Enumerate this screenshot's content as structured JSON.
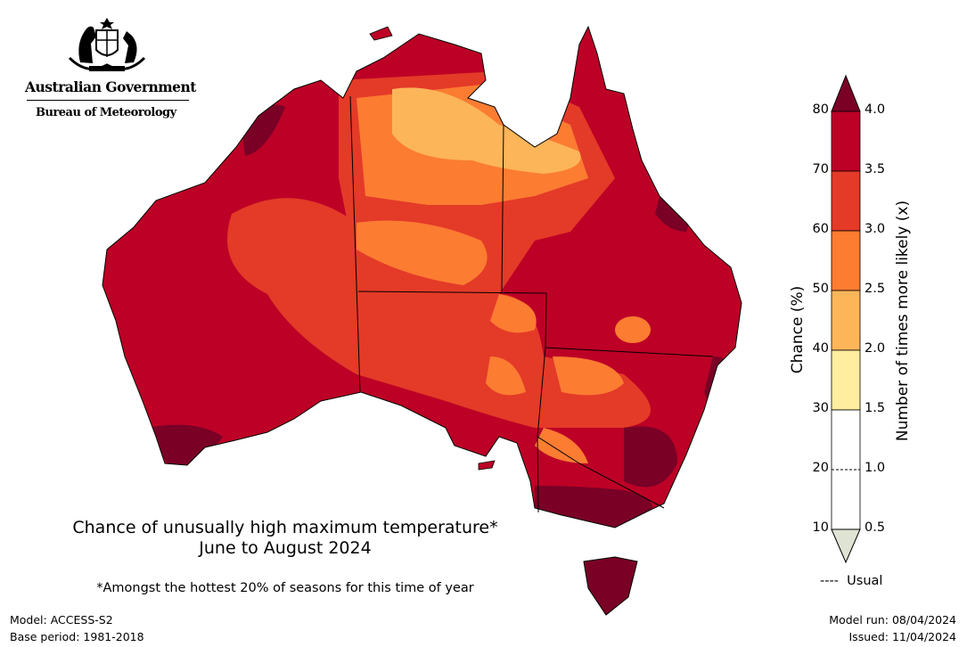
{
  "branding": {
    "government": "Australian Government",
    "agency": "Bureau of Meteorology"
  },
  "title": {
    "line1": "Chance of unusually high maximum temperature*",
    "line2": "June to August 2024"
  },
  "footnote": "*Amongst the hottest 20% of seasons for this time of year",
  "footer": {
    "model": "Model: ACCESS-S2",
    "base_period": "Base period: 1981-2018",
    "model_run": "Model run: 08/04/2024",
    "issued": "Issued: 11/04/2024"
  },
  "legend": {
    "left_label": "Chance (%)",
    "right_label": "Number of times more likely (x)",
    "left_ticks": [
      "80",
      "70",
      "60",
      "50",
      "40",
      "30",
      "20",
      "10"
    ],
    "right_ticks": [
      "4.0",
      "3.5",
      "3.0",
      "2.5",
      "2.0",
      "1.5",
      "1.0",
      "0.5"
    ],
    "usual_label": "Usual",
    "usual_marker": "----",
    "colors": {
      "above80": "#7a0026",
      "70-80": "#bd0026",
      "60-70": "#e43a28",
      "50-60": "#fc7c32",
      "40-50": "#fdb55a",
      "30-40": "#ffeda0",
      "10-30": "#ffffff",
      "below10": "#dfe3d3"
    }
  }
}
